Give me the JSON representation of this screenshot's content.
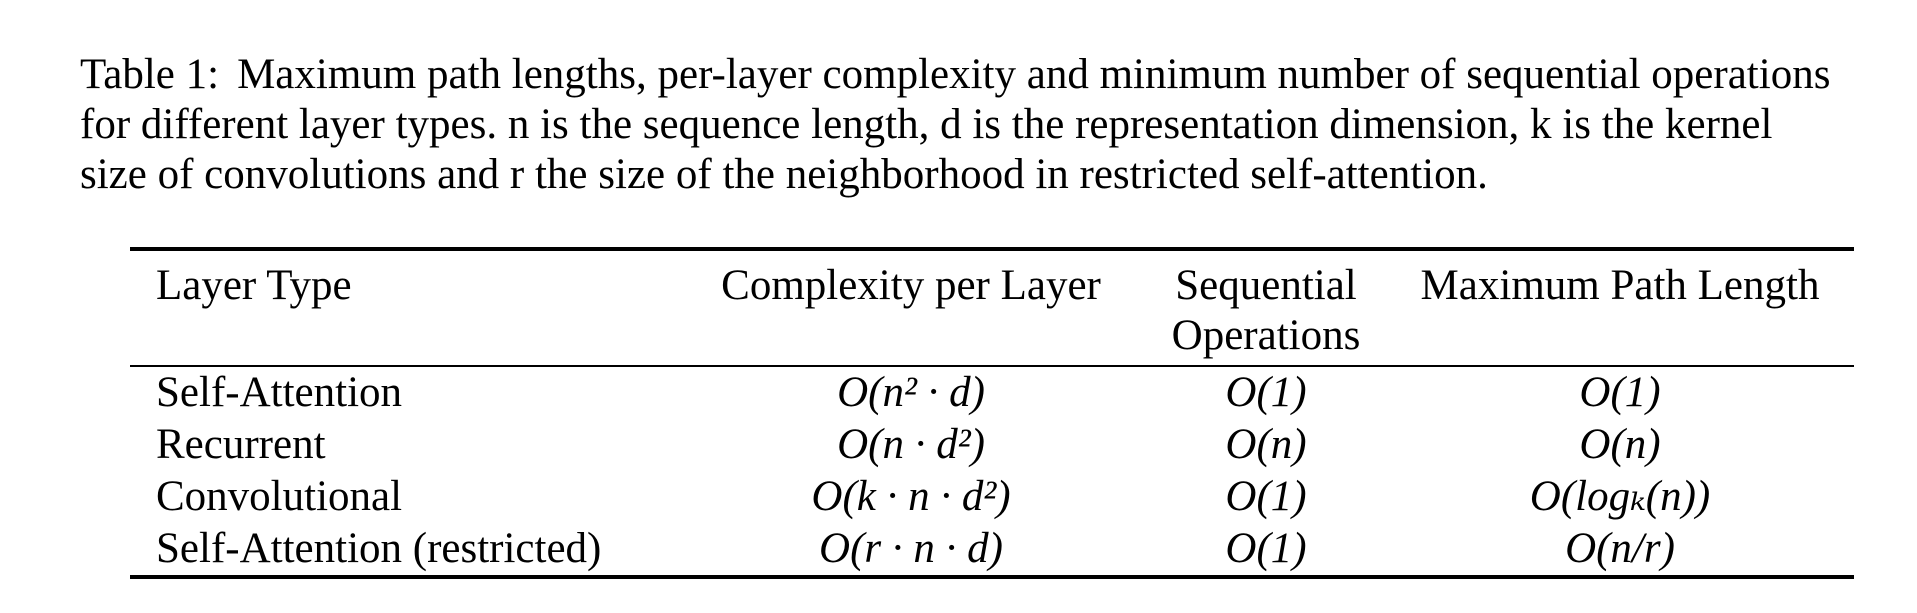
{
  "caption": {
    "label": "Table 1:",
    "line1": "Maximum path lengths, per-layer complexity and minimum number of sequential operations",
    "line2": "for different layer types. n is the sequence length, d is the representation dimension, k is the kernel",
    "line3": "size of convolutions and r the size of the neighborhood in restricted self-attention."
  },
  "table": {
    "headers": {
      "layer_type": "Layer Type",
      "complexity": "Complexity per Layer",
      "sequential_line1": "Sequential",
      "sequential_line2": "Operations",
      "max_path": "Maximum Path Length"
    },
    "rows": [
      {
        "layer_type": "Self-Attention",
        "complexity": "O(n² · d)",
        "sequential": "O(1)",
        "max_path": "O(1)"
      },
      {
        "layer_type": "Recurrent",
        "complexity": "O(n · d²)",
        "sequential": "O(n)",
        "max_path": "O(n)"
      },
      {
        "layer_type": "Convolutional",
        "complexity": "O(k · n · d²)",
        "sequential": "O(1)",
        "max_path": "O(logₖ(n))"
      },
      {
        "layer_type": "Self-Attention (restricted)",
        "complexity": "O(r · n · d)",
        "sequential": "O(1)",
        "max_path": "O(n/r)"
      }
    ]
  }
}
